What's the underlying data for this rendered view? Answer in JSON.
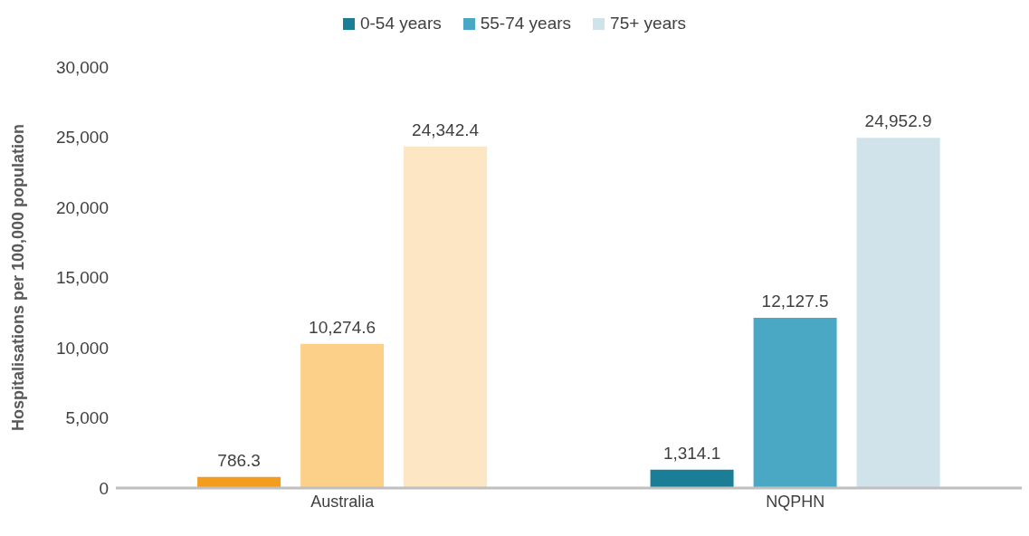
{
  "chart_data": {
    "type": "bar",
    "ylabel": "Hospitalisations per 100,000 population",
    "categories": [
      "Australia",
      "NQPHN"
    ],
    "series": [
      {
        "name": "0-54 years",
        "color": "#1a7f96",
        "colors": [
          "#f39c1e",
          "#1a7f96"
        ],
        "values": [
          786.3,
          1314.1
        ],
        "value_labels": [
          "786.3",
          "1,314.1"
        ]
      },
      {
        "name": "55-74 years",
        "color": "#4aa8c4",
        "colors": [
          "#fdd08a",
          "#4aa8c4"
        ],
        "values": [
          10274.6,
          12127.5
        ],
        "value_labels": [
          "10,274.6",
          "12,127.5"
        ]
      },
      {
        "name": "75+ years",
        "color": "#d0e2ea",
        "colors": [
          "#fde6c4",
          "#d0e2ea"
        ],
        "values": [
          24342.4,
          24952.9
        ],
        "value_labels": [
          "24,342.4",
          "24,952.9"
        ]
      }
    ],
    "ylim": [
      0,
      30000
    ],
    "yticks": [
      {
        "value": 0,
        "label": "0"
      },
      {
        "value": 5000,
        "label": "5,000"
      },
      {
        "value": 10000,
        "label": "10,000"
      },
      {
        "value": 15000,
        "label": "15,000"
      },
      {
        "value": 20000,
        "label": "20,000"
      },
      {
        "value": 25000,
        "label": "25,000"
      },
      {
        "value": 30000,
        "label": "30,000"
      }
    ],
    "legend": "top",
    "grid": false
  }
}
